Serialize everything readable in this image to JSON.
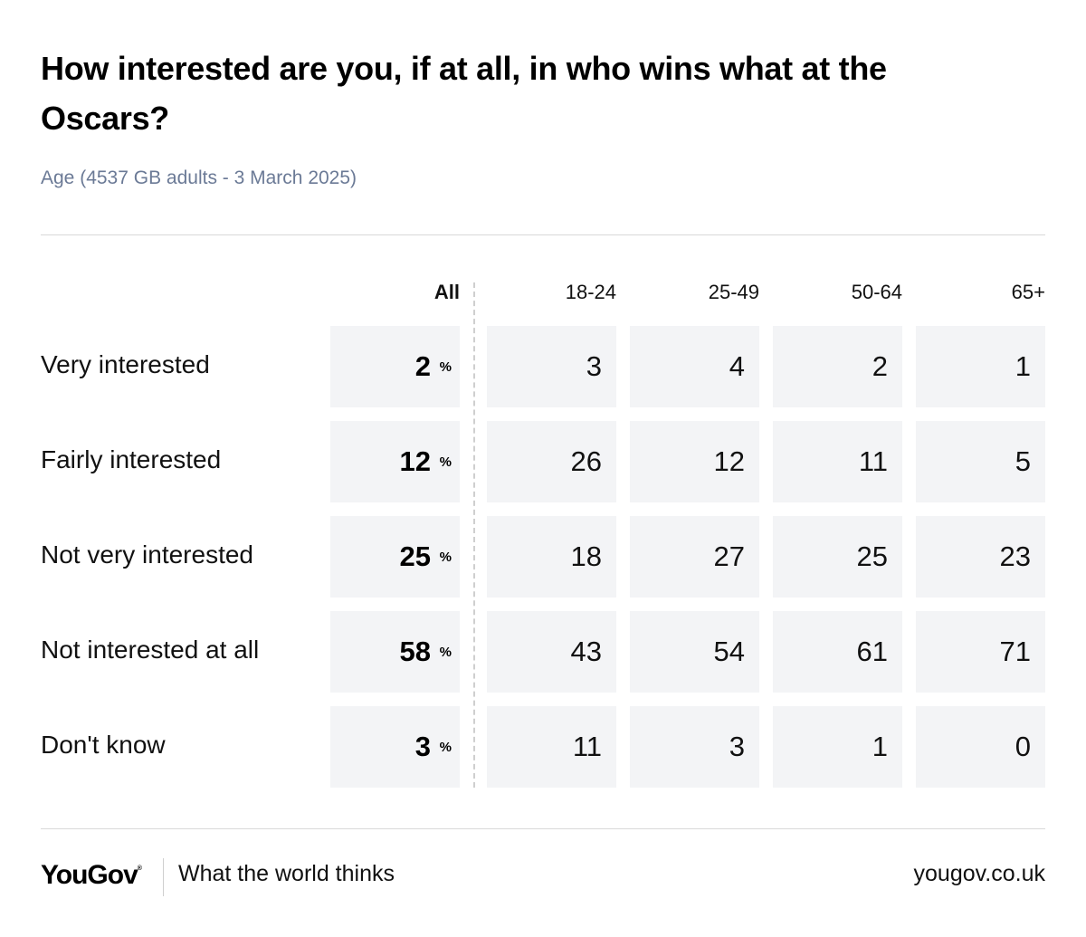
{
  "title": "How interested are you, if at all, in who wins what at the Oscars?",
  "subtitle": "Age (4537 GB adults - 3 March 2025)",
  "chart_data": {
    "type": "table",
    "columns": [
      "All",
      "18-24",
      "25-49",
      "50-64",
      "65+"
    ],
    "rows": [
      {
        "label": "Very interested",
        "all": "2",
        "values": [
          "3",
          "4",
          "2",
          "1"
        ]
      },
      {
        "label": "Fairly interested",
        "all": "12",
        "values": [
          "26",
          "12",
          "11",
          "5"
        ]
      },
      {
        "label": "Not very interested",
        "all": "25",
        "values": [
          "18",
          "27",
          "25",
          "23"
        ]
      },
      {
        "label": "Not interested at all",
        "all": "58",
        "values": [
          "43",
          "54",
          "61",
          "71"
        ]
      },
      {
        "label": "Don't know",
        "all": "3",
        "values": [
          "11",
          "3",
          "1",
          "0"
        ]
      }
    ],
    "all_unit": "%"
  },
  "colors": {
    "cell_background": "#f3f4f6",
    "subtitle": "#6b7a96",
    "rule": "#d9d9d9"
  },
  "footer": {
    "logo": "YouGov",
    "logo_mark": "®",
    "tagline": "What the world thinks",
    "url": "yougov.co.uk"
  }
}
